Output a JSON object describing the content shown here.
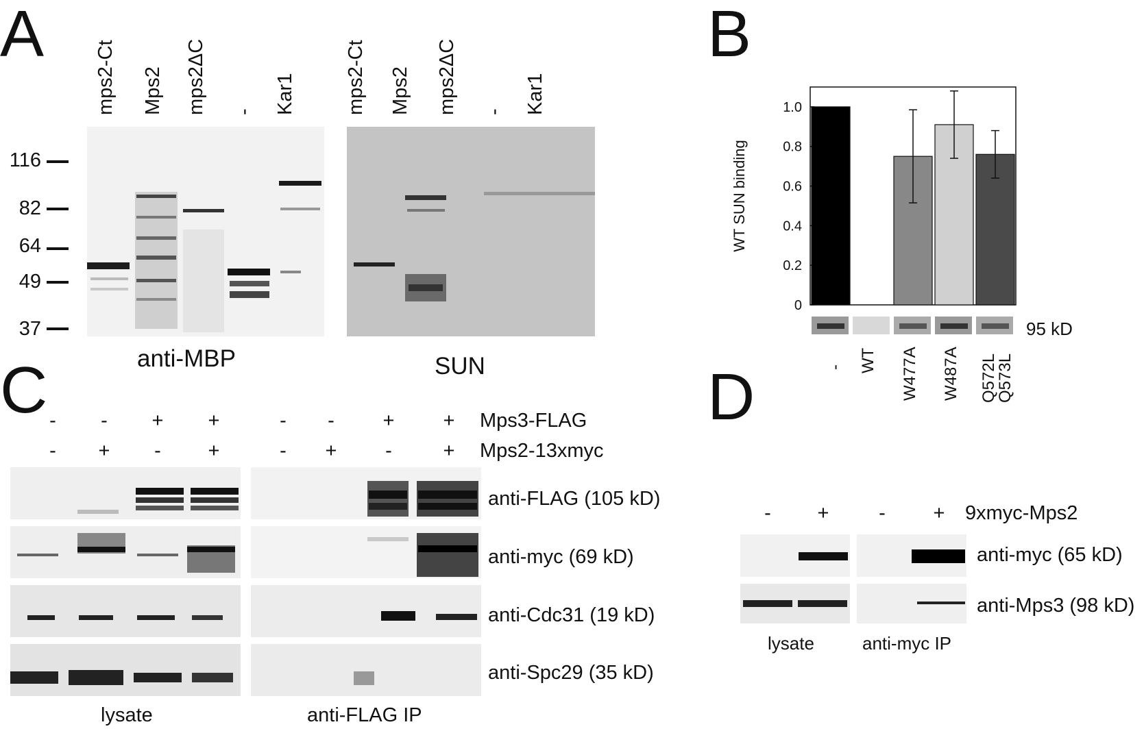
{
  "panels": {
    "A": {
      "letter": "A",
      "lanes_left": [
        "mps2-Ct",
        "Mps2",
        "mps2ΔC",
        "-",
        "Kar1"
      ],
      "lanes_right": [
        "mps2-Ct",
        "Mps2",
        "mps2ΔC",
        "-",
        "Kar1"
      ],
      "markers": [
        "116",
        "82",
        "64",
        "49",
        "37"
      ],
      "blot_left_label": "anti-MBP",
      "blot_right_label": "SUN"
    },
    "B": {
      "letter": "B",
      "band_label": "95 kD",
      "categories": [
        "-",
        "WT",
        "W477A",
        "W487A",
        "Q572L",
        "Q573L"
      ]
    },
    "C": {
      "letter": "C",
      "row1_signs": [
        "-",
        "-",
        "+",
        "+",
        "-",
        "-",
        "+",
        "+"
      ],
      "row1_label": "Mps3-FLAG",
      "row2_signs": [
        "-",
        "+",
        "-",
        "+",
        "-",
        "+",
        "-",
        "+"
      ],
      "row2_label": "Mps2-13xmyc",
      "blot_labels": [
        "anti-FLAG (105 kD)",
        "anti-myc (69 kD)",
        "anti-Cdc31 (19 kD)",
        "anti-Spc29 (35 kD)"
      ],
      "footer_left": "lysate",
      "footer_right": "anti-FLAG IP"
    },
    "D": {
      "letter": "D",
      "signs": [
        "-",
        "+",
        "-",
        "+"
      ],
      "signs_label": "9xmyc-Mps2",
      "blot_labels": [
        "anti-myc (65 kD)",
        "anti-Mps3 (98 kD)"
      ],
      "footer_left": "lysate",
      "footer_right": "anti-myc IP"
    }
  },
  "chart_data": {
    "type": "bar",
    "categories": [
      "-",
      "WT",
      "W477A",
      "W487A",
      "Q572L Q573L"
    ],
    "values": [
      1.0,
      0.0,
      0.75,
      0.91,
      0.76
    ],
    "error": [
      0,
      0,
      0.235,
      0.17,
      0.12
    ],
    "colors": [
      "#000000",
      "#ffffff",
      "#888888",
      "#d0d0d0",
      "#4a4a4a"
    ],
    "ylabel": "WT SUN binding",
    "ylim": [
      0,
      1.1
    ],
    "yticks": [
      "0",
      "0.2",
      "0.4",
      "0.6",
      "0.8",
      "1.0"
    ],
    "ytick_values": [
      0,
      0.2,
      0.4,
      0.6,
      0.8,
      1.0
    ]
  }
}
